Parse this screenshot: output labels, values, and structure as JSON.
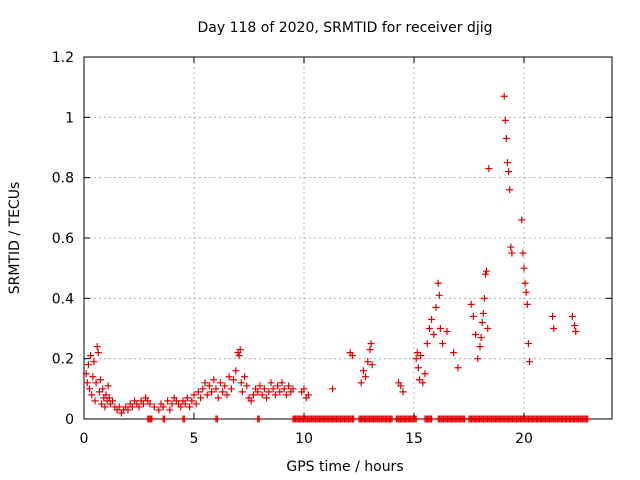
{
  "chart_data": {
    "type": "scatter",
    "title": "Day 118 of 2020, SRMTID for receiver djig",
    "xlabel": "GPS time / hours",
    "ylabel": "SRMTID / TECUs",
    "xlim": [
      0,
      24
    ],
    "ylim": [
      0,
      1.2
    ],
    "xticks": [
      0,
      5,
      10,
      15,
      20
    ],
    "xtick_labels": [
      "0",
      "5",
      "10",
      "15",
      "20"
    ],
    "yticks": [
      0,
      0.2,
      0.4,
      0.6,
      0.8,
      1.0,
      1.2
    ],
    "ytick_labels": [
      "0",
      "0.2",
      "0.4",
      "0.6",
      "0.8",
      "1",
      "1.2"
    ],
    "grid": true,
    "marker": "+",
    "color": "#e00000",
    "series": [
      {
        "name": "SRMTID",
        "points": [
          [
            0.1,
            0.15
          ],
          [
            0.15,
            0.12
          ],
          [
            0.2,
            0.18
          ],
          [
            0.25,
            0.1
          ],
          [
            0.3,
            0.21
          ],
          [
            0.35,
            0.08
          ],
          [
            0.4,
            0.14
          ],
          [
            0.45,
            0.19
          ],
          [
            0.5,
            0.06
          ],
          [
            0.55,
            0.12
          ],
          [
            0.6,
            0.24
          ],
          [
            0.65,
            0.22
          ],
          [
            0.7,
            0.09
          ],
          [
            0.75,
            0.13
          ],
          [
            0.8,
            0.05
          ],
          [
            0.85,
            0.1
          ],
          [
            0.9,
            0.07
          ],
          [
            0.95,
            0.04
          ],
          [
            1.0,
            0.08
          ],
          [
            1.05,
            0.06
          ],
          [
            1.1,
            0.11
          ],
          [
            1.15,
            0.07
          ],
          [
            1.2,
            0.05
          ],
          [
            1.3,
            0.06
          ],
          [
            1.4,
            0.04
          ],
          [
            1.5,
            0.03
          ],
          [
            1.6,
            0.04
          ],
          [
            1.7,
            0.02
          ],
          [
            1.8,
            0.03
          ],
          [
            1.9,
            0.04
          ],
          [
            2.0,
            0.03
          ],
          [
            2.1,
            0.05
          ],
          [
            2.2,
            0.04
          ],
          [
            2.3,
            0.06
          ],
          [
            2.4,
            0.05
          ],
          [
            2.5,
            0.04
          ],
          [
            2.6,
            0.06
          ],
          [
            2.7,
            0.05
          ],
          [
            2.8,
            0.07
          ],
          [
            2.9,
            0.06
          ],
          [
            3.0,
            0.05
          ],
          [
            3.2,
            0.04
          ],
          [
            3.4,
            0.03
          ],
          [
            3.5,
            0.05
          ],
          [
            3.6,
            0.04
          ],
          [
            3.8,
            0.06
          ],
          [
            3.9,
            0.03
          ],
          [
            4.0,
            0.05
          ],
          [
            4.1,
            0.07
          ],
          [
            4.2,
            0.06
          ],
          [
            4.3,
            0.05
          ],
          [
            4.4,
            0.04
          ],
          [
            4.5,
            0.06
          ],
          [
            4.6,
            0.05
          ],
          [
            4.7,
            0.07
          ],
          [
            4.8,
            0.04
          ],
          [
            4.9,
            0.06
          ],
          [
            5.0,
            0.08
          ],
          [
            5.1,
            0.05
          ],
          [
            5.2,
            0.09
          ],
          [
            5.3,
            0.07
          ],
          [
            5.4,
            0.1
          ],
          [
            5.5,
            0.12
          ],
          [
            5.6,
            0.08
          ],
          [
            5.7,
            0.11
          ],
          [
            5.8,
            0.09
          ],
          [
            5.9,
            0.13
          ],
          [
            6.0,
            0.1
          ],
          [
            6.1,
            0.07
          ],
          [
            6.2,
            0.12
          ],
          [
            6.3,
            0.09
          ],
          [
            6.4,
            0.11
          ],
          [
            6.5,
            0.08
          ],
          [
            6.6,
            0.14
          ],
          [
            6.7,
            0.1
          ],
          [
            6.8,
            0.13
          ],
          [
            6.9,
            0.16
          ],
          [
            7.0,
            0.22
          ],
          [
            7.05,
            0.21
          ],
          [
            7.1,
            0.23
          ],
          [
            7.15,
            0.12
          ],
          [
            7.2,
            0.09
          ],
          [
            7.3,
            0.14
          ],
          [
            7.4,
            0.11
          ],
          [
            7.5,
            0.07
          ],
          [
            7.6,
            0.06
          ],
          [
            7.7,
            0.08
          ],
          [
            7.8,
            0.1
          ],
          [
            7.9,
            0.09
          ],
          [
            8.0,
            0.11
          ],
          [
            8.1,
            0.08
          ],
          [
            8.2,
            0.1
          ],
          [
            8.3,
            0.07
          ],
          [
            8.4,
            0.09
          ],
          [
            8.5,
            0.12
          ],
          [
            8.6,
            0.1
          ],
          [
            8.7,
            0.08
          ],
          [
            8.8,
            0.11
          ],
          [
            8.9,
            0.09
          ],
          [
            9.0,
            0.12
          ],
          [
            9.1,
            0.1
          ],
          [
            9.2,
            0.08
          ],
          [
            9.3,
            0.11
          ],
          [
            9.4,
            0.09
          ],
          [
            9.5,
            0.1
          ],
          [
            9.9,
            0.09
          ],
          [
            10.0,
            0.1
          ],
          [
            10.1,
            0.07
          ],
          [
            10.2,
            0.08
          ],
          [
            11.3,
            0.1
          ],
          [
            12.1,
            0.22
          ],
          [
            12.2,
            0.21
          ],
          [
            12.6,
            0.12
          ],
          [
            12.7,
            0.16
          ],
          [
            12.8,
            0.14
          ],
          [
            12.9,
            0.19
          ],
          [
            13.0,
            0.23
          ],
          [
            13.05,
            0.25
          ],
          [
            13.1,
            0.18
          ],
          [
            14.3,
            0.12
          ],
          [
            14.4,
            0.11
          ],
          [
            14.5,
            0.09
          ],
          [
            15.1,
            0.2
          ],
          [
            15.15,
            0.22
          ],
          [
            15.2,
            0.17
          ],
          [
            15.25,
            0.13
          ],
          [
            15.3,
            0.21
          ],
          [
            15.4,
            0.12
          ],
          [
            15.5,
            0.15
          ],
          [
            15.6,
            0.25
          ],
          [
            15.7,
            0.3
          ],
          [
            15.8,
            0.33
          ],
          [
            15.9,
            0.28
          ],
          [
            16.0,
            0.37
          ],
          [
            16.1,
            0.45
          ],
          [
            16.15,
            0.41
          ],
          [
            16.2,
            0.3
          ],
          [
            16.3,
            0.25
          ],
          [
            16.5,
            0.29
          ],
          [
            16.8,
            0.22
          ],
          [
            17.0,
            0.17
          ],
          [
            17.6,
            0.38
          ],
          [
            17.7,
            0.34
          ],
          [
            17.8,
            0.28
          ],
          [
            17.9,
            0.2
          ],
          [
            18.0,
            0.24
          ],
          [
            18.05,
            0.27
          ],
          [
            18.1,
            0.32
          ],
          [
            18.15,
            0.35
          ],
          [
            18.2,
            0.4
          ],
          [
            18.25,
            0.48
          ],
          [
            18.3,
            0.49
          ],
          [
            18.35,
            0.3
          ],
          [
            18.4,
            0.83
          ],
          [
            19.1,
            1.07
          ],
          [
            19.15,
            0.99
          ],
          [
            19.2,
            0.93
          ],
          [
            19.25,
            0.85
          ],
          [
            19.3,
            0.82
          ],
          [
            19.35,
            0.76
          ],
          [
            19.4,
            0.57
          ],
          [
            19.45,
            0.55
          ],
          [
            19.9,
            0.66
          ],
          [
            19.95,
            0.55
          ],
          [
            20.0,
            0.5
          ],
          [
            20.05,
            0.45
          ],
          [
            20.1,
            0.42
          ],
          [
            20.15,
            0.38
          ],
          [
            20.2,
            0.25
          ],
          [
            20.25,
            0.19
          ],
          [
            21.3,
            0.34
          ],
          [
            21.35,
            0.3
          ],
          [
            22.2,
            0.34
          ],
          [
            22.3,
            0.31
          ],
          [
            22.35,
            0.29
          ]
        ],
        "zero_ranges": [
          [
            2.9,
            3.1
          ],
          [
            3.6,
            3.7
          ],
          [
            4.5,
            4.6
          ],
          [
            6.0,
            6.1
          ],
          [
            7.9,
            8.0
          ],
          [
            9.5,
            12.3
          ],
          [
            12.5,
            14.0
          ],
          [
            14.2,
            15.1
          ],
          [
            15.5,
            15.8
          ],
          [
            16.1,
            17.3
          ],
          [
            17.5,
            22.9
          ]
        ]
      }
    ]
  }
}
